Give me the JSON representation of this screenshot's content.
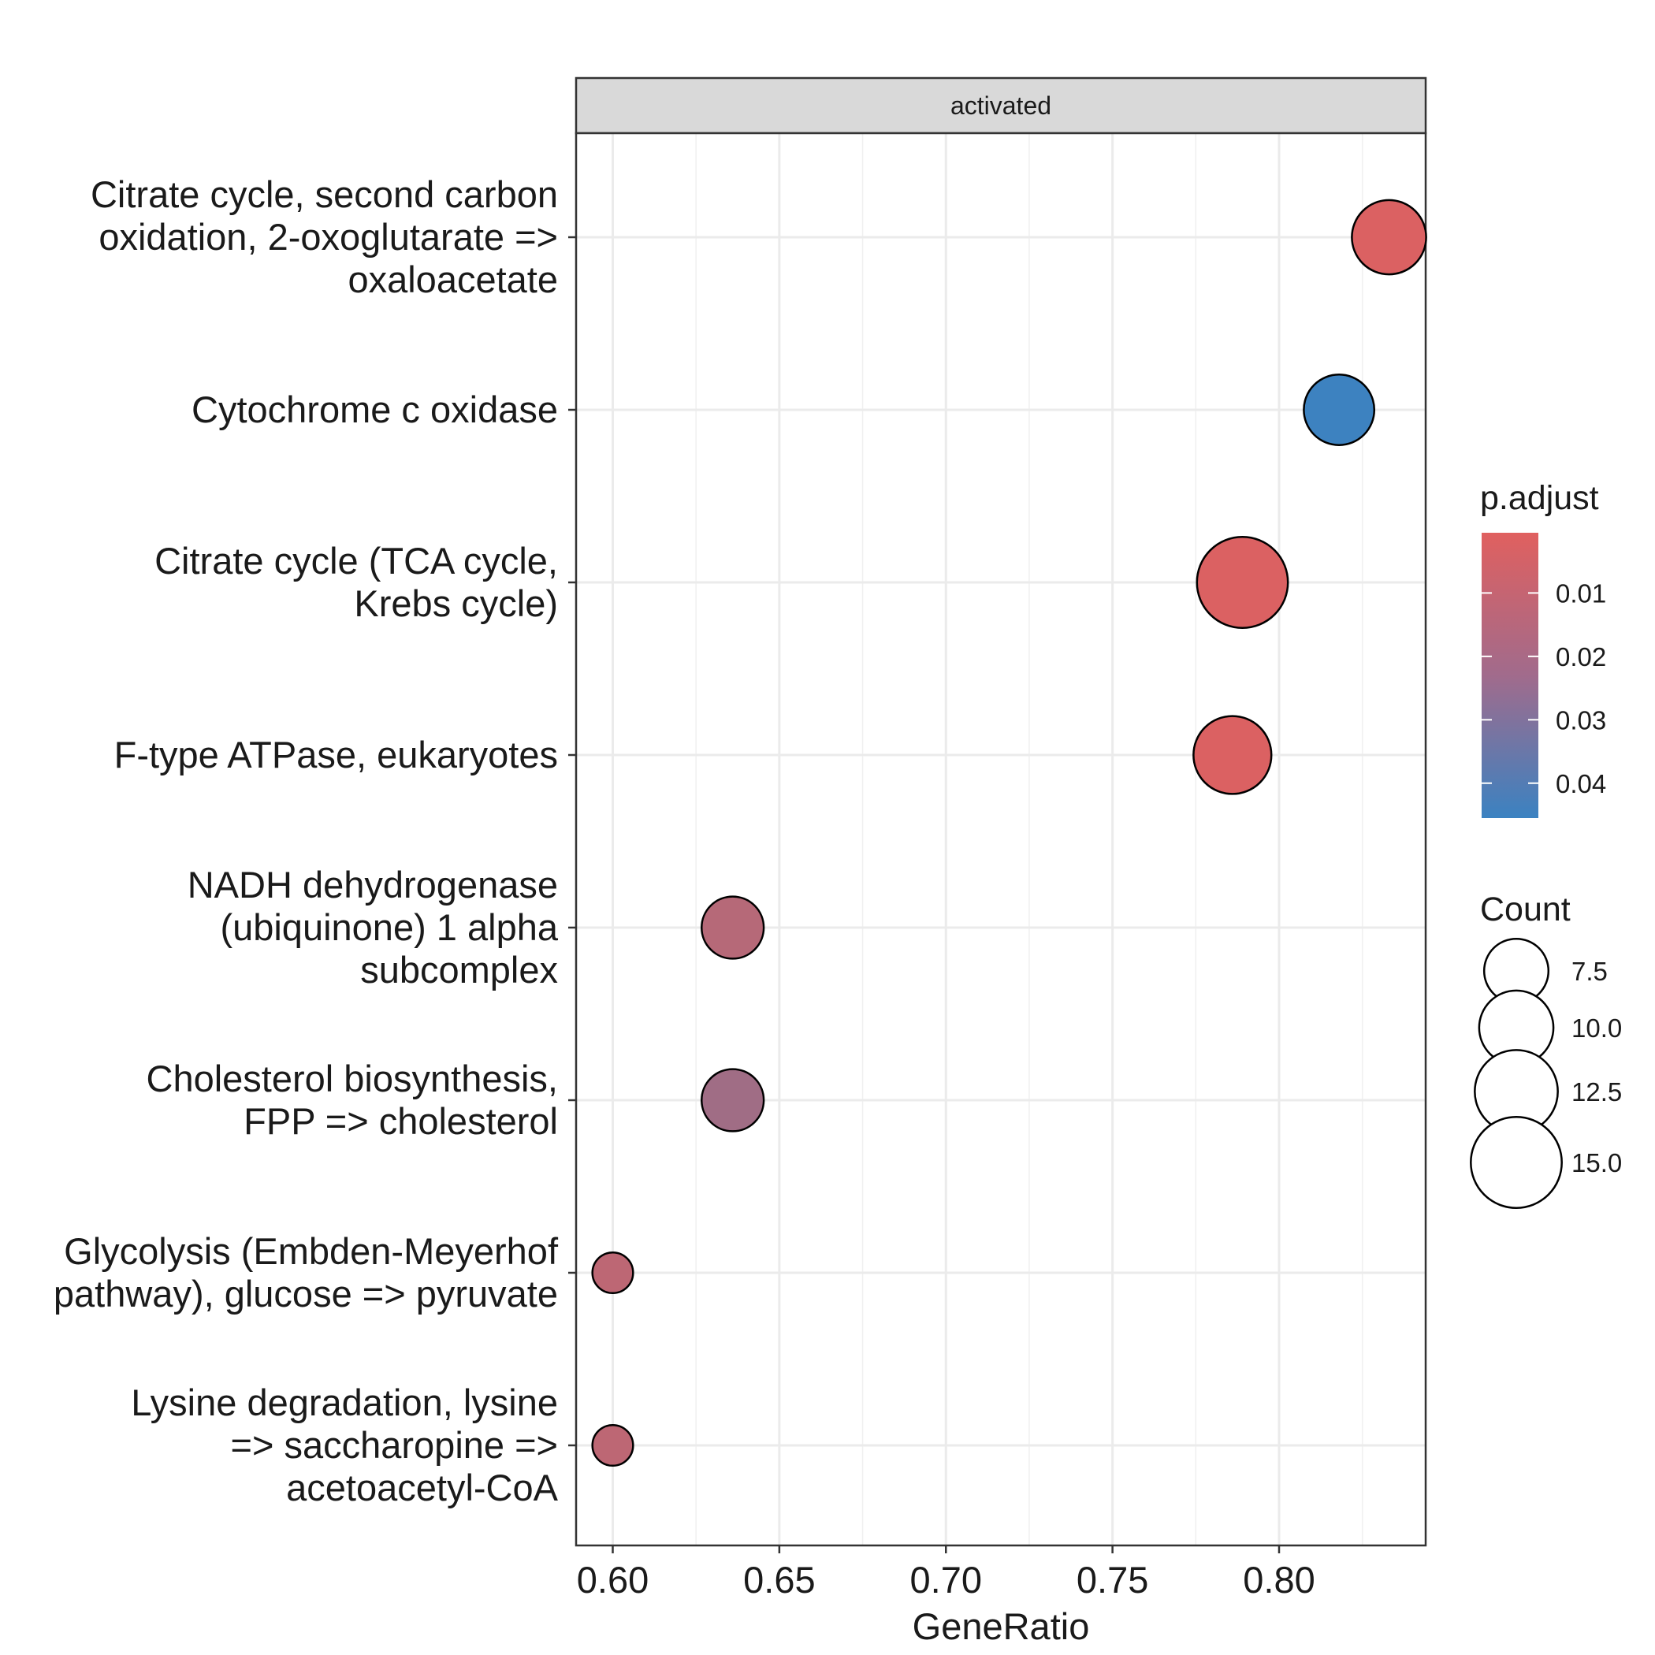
{
  "chart_data": {
    "type": "scatter",
    "facet": "activated",
    "xlabel": "GeneRatio",
    "ylabel": "",
    "xlim": [
      0.589,
      0.844
    ],
    "xticks": [
      0.6,
      0.65,
      0.7,
      0.75,
      0.8
    ],
    "xtick_labels": [
      "0.60",
      "0.65",
      "0.70",
      "0.75",
      "0.80"
    ],
    "grid": true,
    "categories": [
      {
        "lines": [
          "Citrate cycle, second carbon",
          "oxidation, 2-oxoglutarate =>",
          "oxaloacetate"
        ]
      },
      {
        "lines": [
          "Cytochrome c oxidase"
        ]
      },
      {
        "lines": [
          "Citrate cycle (TCA cycle,",
          "Krebs cycle)"
        ]
      },
      {
        "lines": [
          "F-type ATPase, eukaryotes"
        ]
      },
      {
        "lines": [
          "NADH dehydrogenase",
          "(ubiquinone) 1 alpha",
          "subcomplex"
        ]
      },
      {
        "lines": [
          "Cholesterol biosynthesis,",
          "FPP => cholesterol"
        ]
      },
      {
        "lines": [
          "Glycolysis (Embden-Meyerhof",
          "pathway), glucose => pyruvate"
        ]
      },
      {
        "lines": [
          "Lysine degradation, lysine",
          "=> saccharopine =>",
          "acetoacetyl-CoA"
        ]
      }
    ],
    "points": [
      {
        "x": 0.833,
        "count": 10,
        "p_adjust": 0.002
      },
      {
        "x": 0.818,
        "count": 9,
        "p_adjust": 0.045
      },
      {
        "x": 0.789,
        "count": 15,
        "p_adjust": 0.002
      },
      {
        "x": 0.786,
        "count": 11,
        "p_adjust": 0.002
      },
      {
        "x": 0.636,
        "count": 7,
        "p_adjust": 0.012
      },
      {
        "x": 0.636,
        "count": 7,
        "p_adjust": 0.018
      },
      {
        "x": 0.6,
        "count": 3,
        "p_adjust": 0.01
      },
      {
        "x": 0.6,
        "count": 3,
        "p_adjust": 0.01
      }
    ],
    "color_legend": {
      "title": "p.adjust",
      "range": [
        0.0005,
        0.0455
      ],
      "ticks": [
        0.01,
        0.02,
        0.03,
        0.04
      ],
      "tick_labels": [
        "0.01",
        "0.02",
        "0.03",
        "0.04"
      ],
      "low_color": "#e0605f",
      "high_color": "#3b82c1"
    },
    "size_legend": {
      "title": "Count",
      "values": [
        7.5,
        10.0,
        12.5,
        15.0
      ],
      "labels": [
        "7.5",
        "10.0",
        "12.5",
        "15.0"
      ]
    }
  }
}
